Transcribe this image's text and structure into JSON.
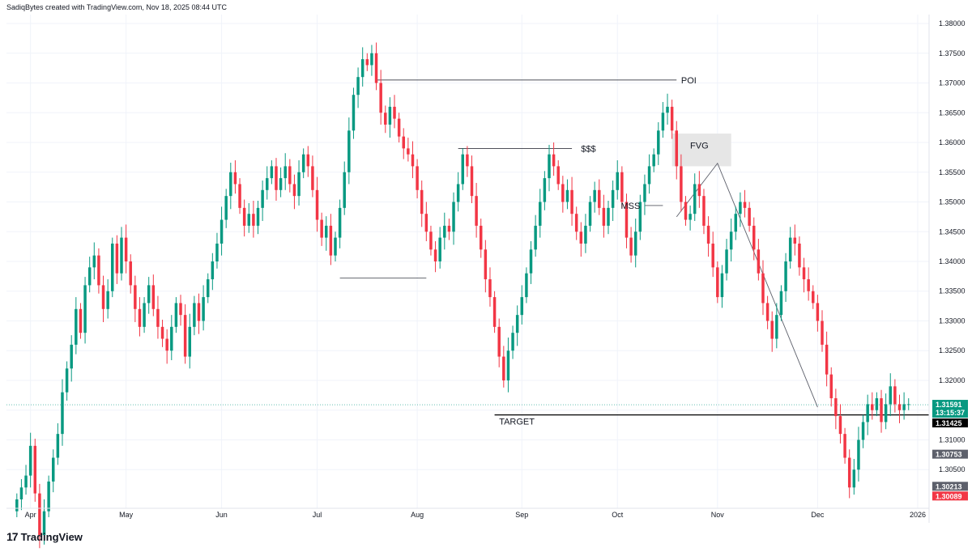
{
  "header": {
    "attribution": "SadiqBytes created with TradingView.com, Nov 18, 2025 08:44 UTC"
  },
  "footer": {
    "logo_text": "TradingView",
    "logo_mark": "17"
  },
  "colors": {
    "up": "#089981",
    "down": "#f23645",
    "grid": "#f0f3fa",
    "line": "#131722"
  },
  "chart_data": {
    "type": "candlestick",
    "y_ticks": [
      "1.38000",
      "1.37500",
      "1.37000",
      "1.36500",
      "1.36000",
      "1.35500",
      "1.35000",
      "1.34500",
      "1.34000",
      "1.33500",
      "1.33000",
      "1.32500",
      "1.32000",
      "1.31500",
      "1.31000",
      "1.30500"
    ],
    "y_tick_values": [
      1.38,
      1.375,
      1.37,
      1.365,
      1.36,
      1.355,
      1.35,
      1.345,
      1.34,
      1.335,
      1.33,
      1.325,
      1.32,
      1.315,
      1.31,
      1.305
    ],
    "ylim": [
      1.2985,
      1.3815
    ],
    "x_labels": [
      "Apr",
      "May",
      "Jun",
      "Jul",
      "Aug",
      "Sep",
      "Oct",
      "Nov",
      "Dec",
      "2026"
    ],
    "x_label_index": [
      3,
      24,
      45,
      66,
      88,
      111,
      132,
      154,
      176,
      198
    ],
    "x_count": 201,
    "annotations": [
      {
        "label": "POI",
        "price": 1.3705
      },
      {
        "label": "$$$",
        "price": 1.359
      },
      {
        "label": "FVG",
        "price": 1.3595
      },
      {
        "label": "MSS",
        "price": 1.3494
      },
      {
        "label": "TARGET",
        "price": 1.3142
      }
    ],
    "price_tags": [
      {
        "value": "1.31591",
        "sub": "13:15:37",
        "price": 1.31591,
        "color": "#089981"
      },
      {
        "value": "1.31425",
        "price": 1.31425,
        "color": "#000000"
      },
      {
        "value": "1.30753",
        "price": 1.30753,
        "color": "#5d606b"
      },
      {
        "value": "1.30213",
        "price": 1.30213,
        "color": "#5d606b"
      },
      {
        "value": "1.30089",
        "price": 1.30089,
        "color": "#f23645"
      }
    ],
    "closes": [
      1.3,
      1.302,
      1.304,
      1.309,
      1.301,
      1.294,
      1.298,
      1.303,
      1.307,
      1.311,
      1.318,
      1.322,
      1.326,
      1.332,
      1.328,
      1.336,
      1.339,
      1.341,
      1.336,
      1.332,
      1.335,
      1.343,
      1.338,
      1.344,
      1.34,
      1.336,
      1.332,
      1.329,
      1.333,
      1.336,
      1.332,
      1.329,
      1.327,
      1.325,
      1.329,
      1.333,
      1.331,
      1.324,
      1.329,
      1.333,
      1.33,
      1.334,
      1.337,
      1.34,
      1.343,
      1.347,
      1.351,
      1.355,
      1.353,
      1.349,
      1.346,
      1.348,
      1.346,
      1.349,
      1.352,
      1.354,
      1.356,
      1.352,
      1.354,
      1.356,
      1.353,
      1.351,
      1.355,
      1.358,
      1.356,
      1.352,
      1.347,
      1.344,
      1.346,
      1.341,
      1.344,
      1.349,
      1.355,
      1.362,
      1.368,
      1.371,
      1.374,
      1.373,
      1.375,
      1.37,
      1.365,
      1.363,
      1.366,
      1.364,
      1.361,
      1.359,
      1.358,
      1.356,
      1.352,
      1.348,
      1.345,
      1.342,
      1.34,
      1.344,
      1.346,
      1.345,
      1.35,
      1.353,
      1.358,
      1.356,
      1.351,
      1.346,
      1.342,
      1.337,
      1.334,
      1.329,
      1.324,
      1.32,
      1.325,
      1.328,
      1.331,
      1.334,
      1.338,
      1.342,
      1.346,
      1.35,
      1.354,
      1.358,
      1.356,
      1.353,
      1.35,
      1.352,
      1.348,
      1.345,
      1.343,
      1.346,
      1.35,
      1.352,
      1.349,
      1.346,
      1.349,
      1.352,
      1.355,
      1.35,
      1.344,
      1.341,
      1.345,
      1.35,
      1.353,
      1.356,
      1.358,
      1.362,
      1.365,
      1.366,
      1.362,
      1.356,
      1.35,
      1.347,
      1.348,
      1.353,
      1.351,
      1.346,
      1.343,
      1.339,
      1.334,
      1.338,
      1.342,
      1.345,
      1.348,
      1.35,
      1.349,
      1.346,
      1.342,
      1.338,
      1.333,
      1.33,
      1.327,
      1.331,
      1.335,
      1.34,
      1.344,
      1.343,
      1.339,
      1.337,
      1.335,
      1.333,
      1.33,
      1.326,
      1.321,
      1.317,
      1.314,
      1.311,
      1.307,
      1.302,
      1.305,
      1.31,
      1.313,
      1.316,
      1.315,
      1.317,
      1.313,
      1.316,
      1.319,
      1.316,
      1.315,
      1.316,
      1.316
    ]
  }
}
